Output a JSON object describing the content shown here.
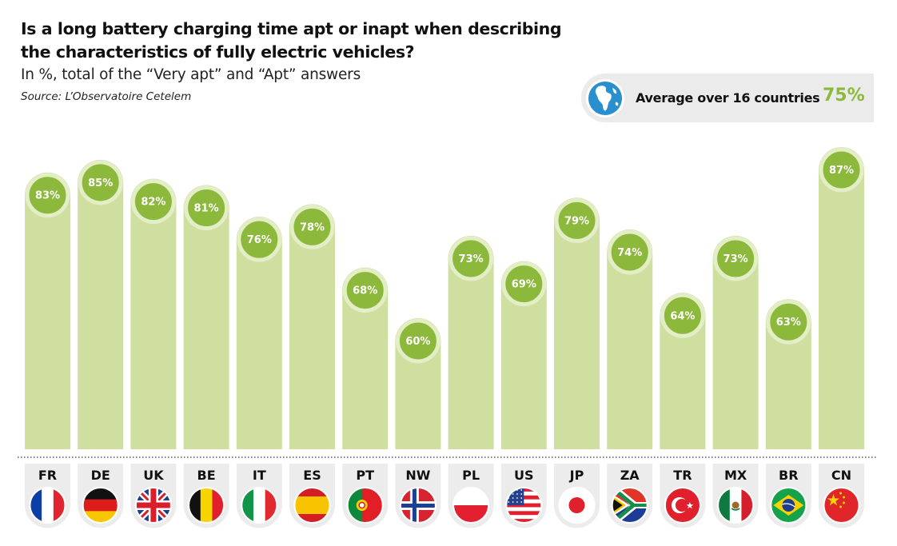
{
  "header": {
    "title": "Is a long battery charging time apt or inapt when describing the characteristics of fully electric vehicles?",
    "subtitle": "In %, total of the “Very apt” and “Apt” answers",
    "source": "Source: L’Observatoire Cetelem"
  },
  "average": {
    "label": "Average over 16 countries",
    "value": "75%",
    "icon": "globe-icon"
  },
  "colors": {
    "bar": "#cfdf9f",
    "bubble": "#8cb83c",
    "accent_text": "#8cb83c"
  },
  "chart_data": {
    "type": "bar",
    "title": "Is a long battery charging time apt or inapt when describing the characteristics of fully electric vehicles?",
    "subtitle": "In %, total of the “Very apt” and “Apt” answers",
    "xlabel": "",
    "ylabel": "",
    "unit": "%",
    "categories": [
      "FR",
      "DE",
      "UK",
      "BE",
      "IT",
      "ES",
      "PT",
      "NW",
      "PL",
      "US",
      "JP",
      "ZA",
      "TR",
      "MX",
      "BR",
      "CN"
    ],
    "values": [
      83,
      85,
      82,
      81,
      76,
      78,
      68,
      60,
      73,
      69,
      79,
      74,
      64,
      73,
      63,
      87
    ],
    "labels": [
      "83%",
      "85%",
      "82%",
      "81%",
      "76%",
      "78%",
      "68%",
      "60%",
      "73%",
      "69%",
      "79%",
      "74%",
      "64%",
      "73%",
      "63%",
      "87%"
    ],
    "flags": [
      "france-flag-icon",
      "germany-flag-icon",
      "uk-flag-icon",
      "belgium-flag-icon",
      "italy-flag-icon",
      "spain-flag-icon",
      "portugal-flag-icon",
      "norway-flag-icon",
      "poland-flag-icon",
      "usa-flag-icon",
      "japan-flag-icon",
      "south-africa-flag-icon",
      "turkey-flag-icon",
      "mexico-flag-icon",
      "brazil-flag-icon",
      "china-flag-icon"
    ],
    "ylim": [
      0,
      100
    ],
    "grid": false,
    "legend": "none"
  }
}
